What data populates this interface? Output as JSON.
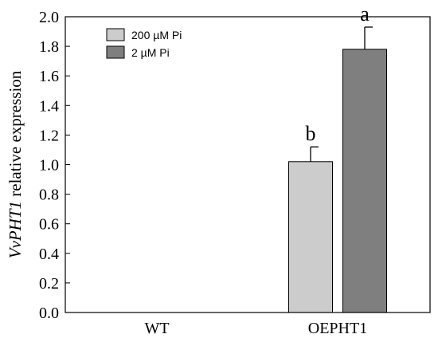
{
  "chart_data": {
    "type": "bar",
    "categories": [
      "WT",
      "OEPHT1"
    ],
    "ylabel_italic": "VvPHT1",
    "ylabel_rest": " relative expression",
    "ylim": [
      0,
      2.0
    ],
    "yticks": [
      "0.0",
      "0.2",
      "0.4",
      "0.6",
      "0.8",
      "1.0",
      "1.2",
      "1.4",
      "1.6",
      "1.8",
      "2.0"
    ],
    "legend_position": "top-left",
    "grid": false,
    "series": [
      {
        "name": "200 µM Pi",
        "color": "#cccccc",
        "values": [
          0,
          1.02
        ],
        "errors": [
          0,
          0.1
        ],
        "labels": [
          "",
          "b"
        ]
      },
      {
        "name": "2 µM Pi",
        "color": "#7f7f7f",
        "values": [
          0,
          1.78
        ],
        "errors": [
          0,
          0.15
        ],
        "labels": [
          "",
          "a"
        ]
      }
    ]
  }
}
